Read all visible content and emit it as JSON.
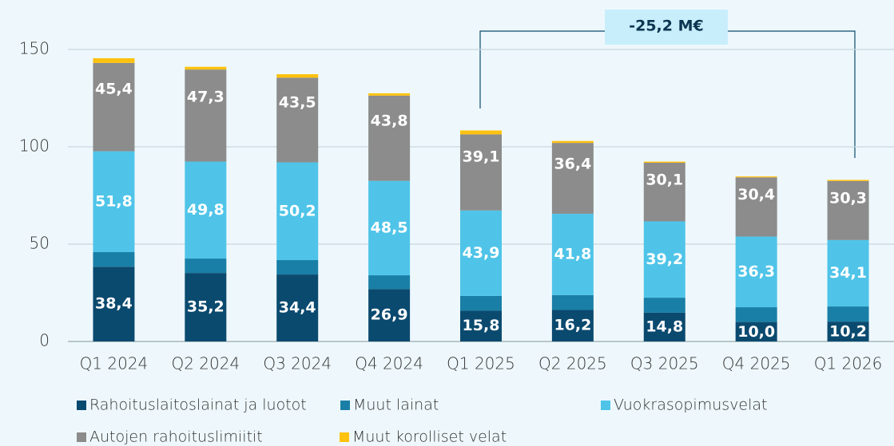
{
  "chart_data": {
    "type": "stacked_bar",
    "annotation": "-25,2 M€",
    "categories": [
      "Q1 2024",
      "Q2 2024",
      "Q3 2024",
      "Q4 2024",
      "Q1 2025",
      "Q2 2025",
      "Q3 2025",
      "Q4 2025",
      "Q1 2026"
    ],
    "series": [
      {
        "name": "Rahoituslaitoslainat ja luotot",
        "color": "#0b4a6f",
        "values": [
          38.4,
          35.2,
          34.4,
          26.9,
          15.8,
          16.2,
          14.8,
          10.0,
          10.2
        ],
        "value_labels": [
          "38,4",
          "35,2",
          "34,4",
          "26,9",
          "15,8",
          "16,2",
          "14,8",
          "10,0",
          "10,2"
        ]
      },
      {
        "name": "Muut lainat",
        "color": "#1a7fa6",
        "values": [
          7.5,
          7.4,
          7.4,
          7.1,
          7.6,
          7.6,
          7.7,
          7.6,
          7.8
        ]
      },
      {
        "name": "Vuokrasopimusvelat",
        "color": "#4fc4e8",
        "values": [
          51.8,
          49.8,
          50.2,
          48.5,
          43.9,
          41.8,
          39.2,
          36.3,
          34.1
        ],
        "value_labels": [
          "51,8",
          "49,8",
          "50,2",
          "48,5",
          "43,9",
          "41,8",
          "39,2",
          "36,3",
          "34,1"
        ]
      },
      {
        "name": "Autojen rahoituslimiitit",
        "color": "#8c8c8c",
        "values": [
          45.4,
          47.3,
          43.5,
          43.8,
          39.1,
          36.4,
          30.1,
          30.4,
          30.3
        ],
        "value_labels": [
          "45,4",
          "47,3",
          "43,5",
          "43,8",
          "39,1",
          "36,4",
          "30,1",
          "30,4",
          "30,3"
        ]
      },
      {
        "name": "Muut korolliset velat",
        "color": "#ffc20e",
        "values": [
          2.4,
          1.4,
          1.8,
          1.2,
          2.0,
          1.0,
          0.6,
          0.5,
          0.6
        ]
      }
    ],
    "ylim": [
      0,
      150
    ],
    "yticks": [
      0,
      50,
      100,
      150
    ],
    "grid": true
  }
}
